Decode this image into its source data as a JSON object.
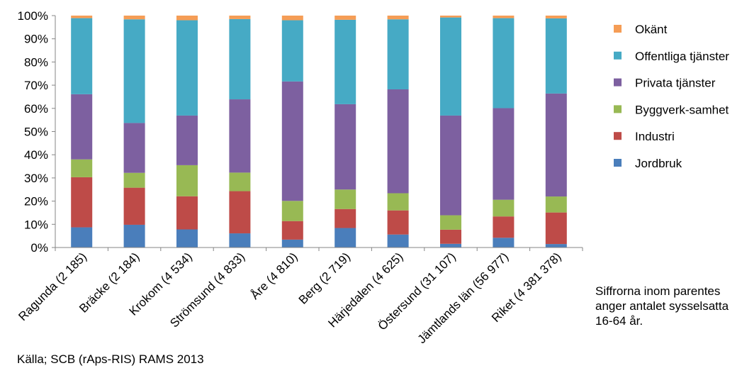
{
  "chart_data": {
    "type": "bar",
    "stacked": true,
    "normalized": true,
    "ylim": [
      0,
      100
    ],
    "yticks": [
      "0%",
      "10%",
      "20%",
      "30%",
      "40%",
      "50%",
      "60%",
      "70%",
      "80%",
      "90%",
      "100%"
    ],
    "grid": false,
    "legend_position": "right",
    "categories": [
      "Ragunda (2 185)",
      "Bräcke (2 184)",
      "Krokom (4 534)",
      "Strömsund (4 833)",
      "Åre (4 810)",
      "Berg (2 719)",
      "Härjedalen (4 625)",
      "Östersund (31 107)",
      "Jämtlands län (56 977)",
      "Riket (4 381 378)"
    ],
    "series": [
      {
        "name": "Jordbruk",
        "color": "#4A7EBB",
        "values": [
          8.7,
          9.8,
          7.8,
          6.1,
          3.4,
          8.4,
          5.6,
          1.6,
          4.2,
          1.5
        ]
      },
      {
        "name": "Industri",
        "color": "#BE4B48",
        "values": [
          21.6,
          16.0,
          14.3,
          18.2,
          8.0,
          8.2,
          10.4,
          6.1,
          9.2,
          13.6
        ]
      },
      {
        "name": "Byggverk-samhet",
        "color": "#98B954",
        "values": [
          7.7,
          6.4,
          13.4,
          8.0,
          8.7,
          8.4,
          7.4,
          6.2,
          7.2,
          6.9
        ]
      },
      {
        "name": "Privata tjänster",
        "color": "#7D60A0",
        "values": [
          28.1,
          21.5,
          21.4,
          31.6,
          51.5,
          36.8,
          44.8,
          43.0,
          39.5,
          44.4
        ]
      },
      {
        "name": "Offentliga tjänster",
        "color": "#46AAC5",
        "values": [
          32.8,
          44.7,
          41.1,
          34.6,
          26.4,
          36.4,
          30.2,
          42.3,
          38.8,
          32.4
        ]
      },
      {
        "name": "Okänt",
        "color": "#F59D56",
        "values": [
          1.1,
          1.6,
          2.0,
          1.5,
          2.0,
          1.8,
          1.6,
          0.8,
          1.1,
          1.2
        ]
      }
    ]
  },
  "note": "Siffrorna inom parentes anger antalet sysselsatta 16-64 år.",
  "source": "Källa; SCB (rAps-RIS) RAMS 2013"
}
